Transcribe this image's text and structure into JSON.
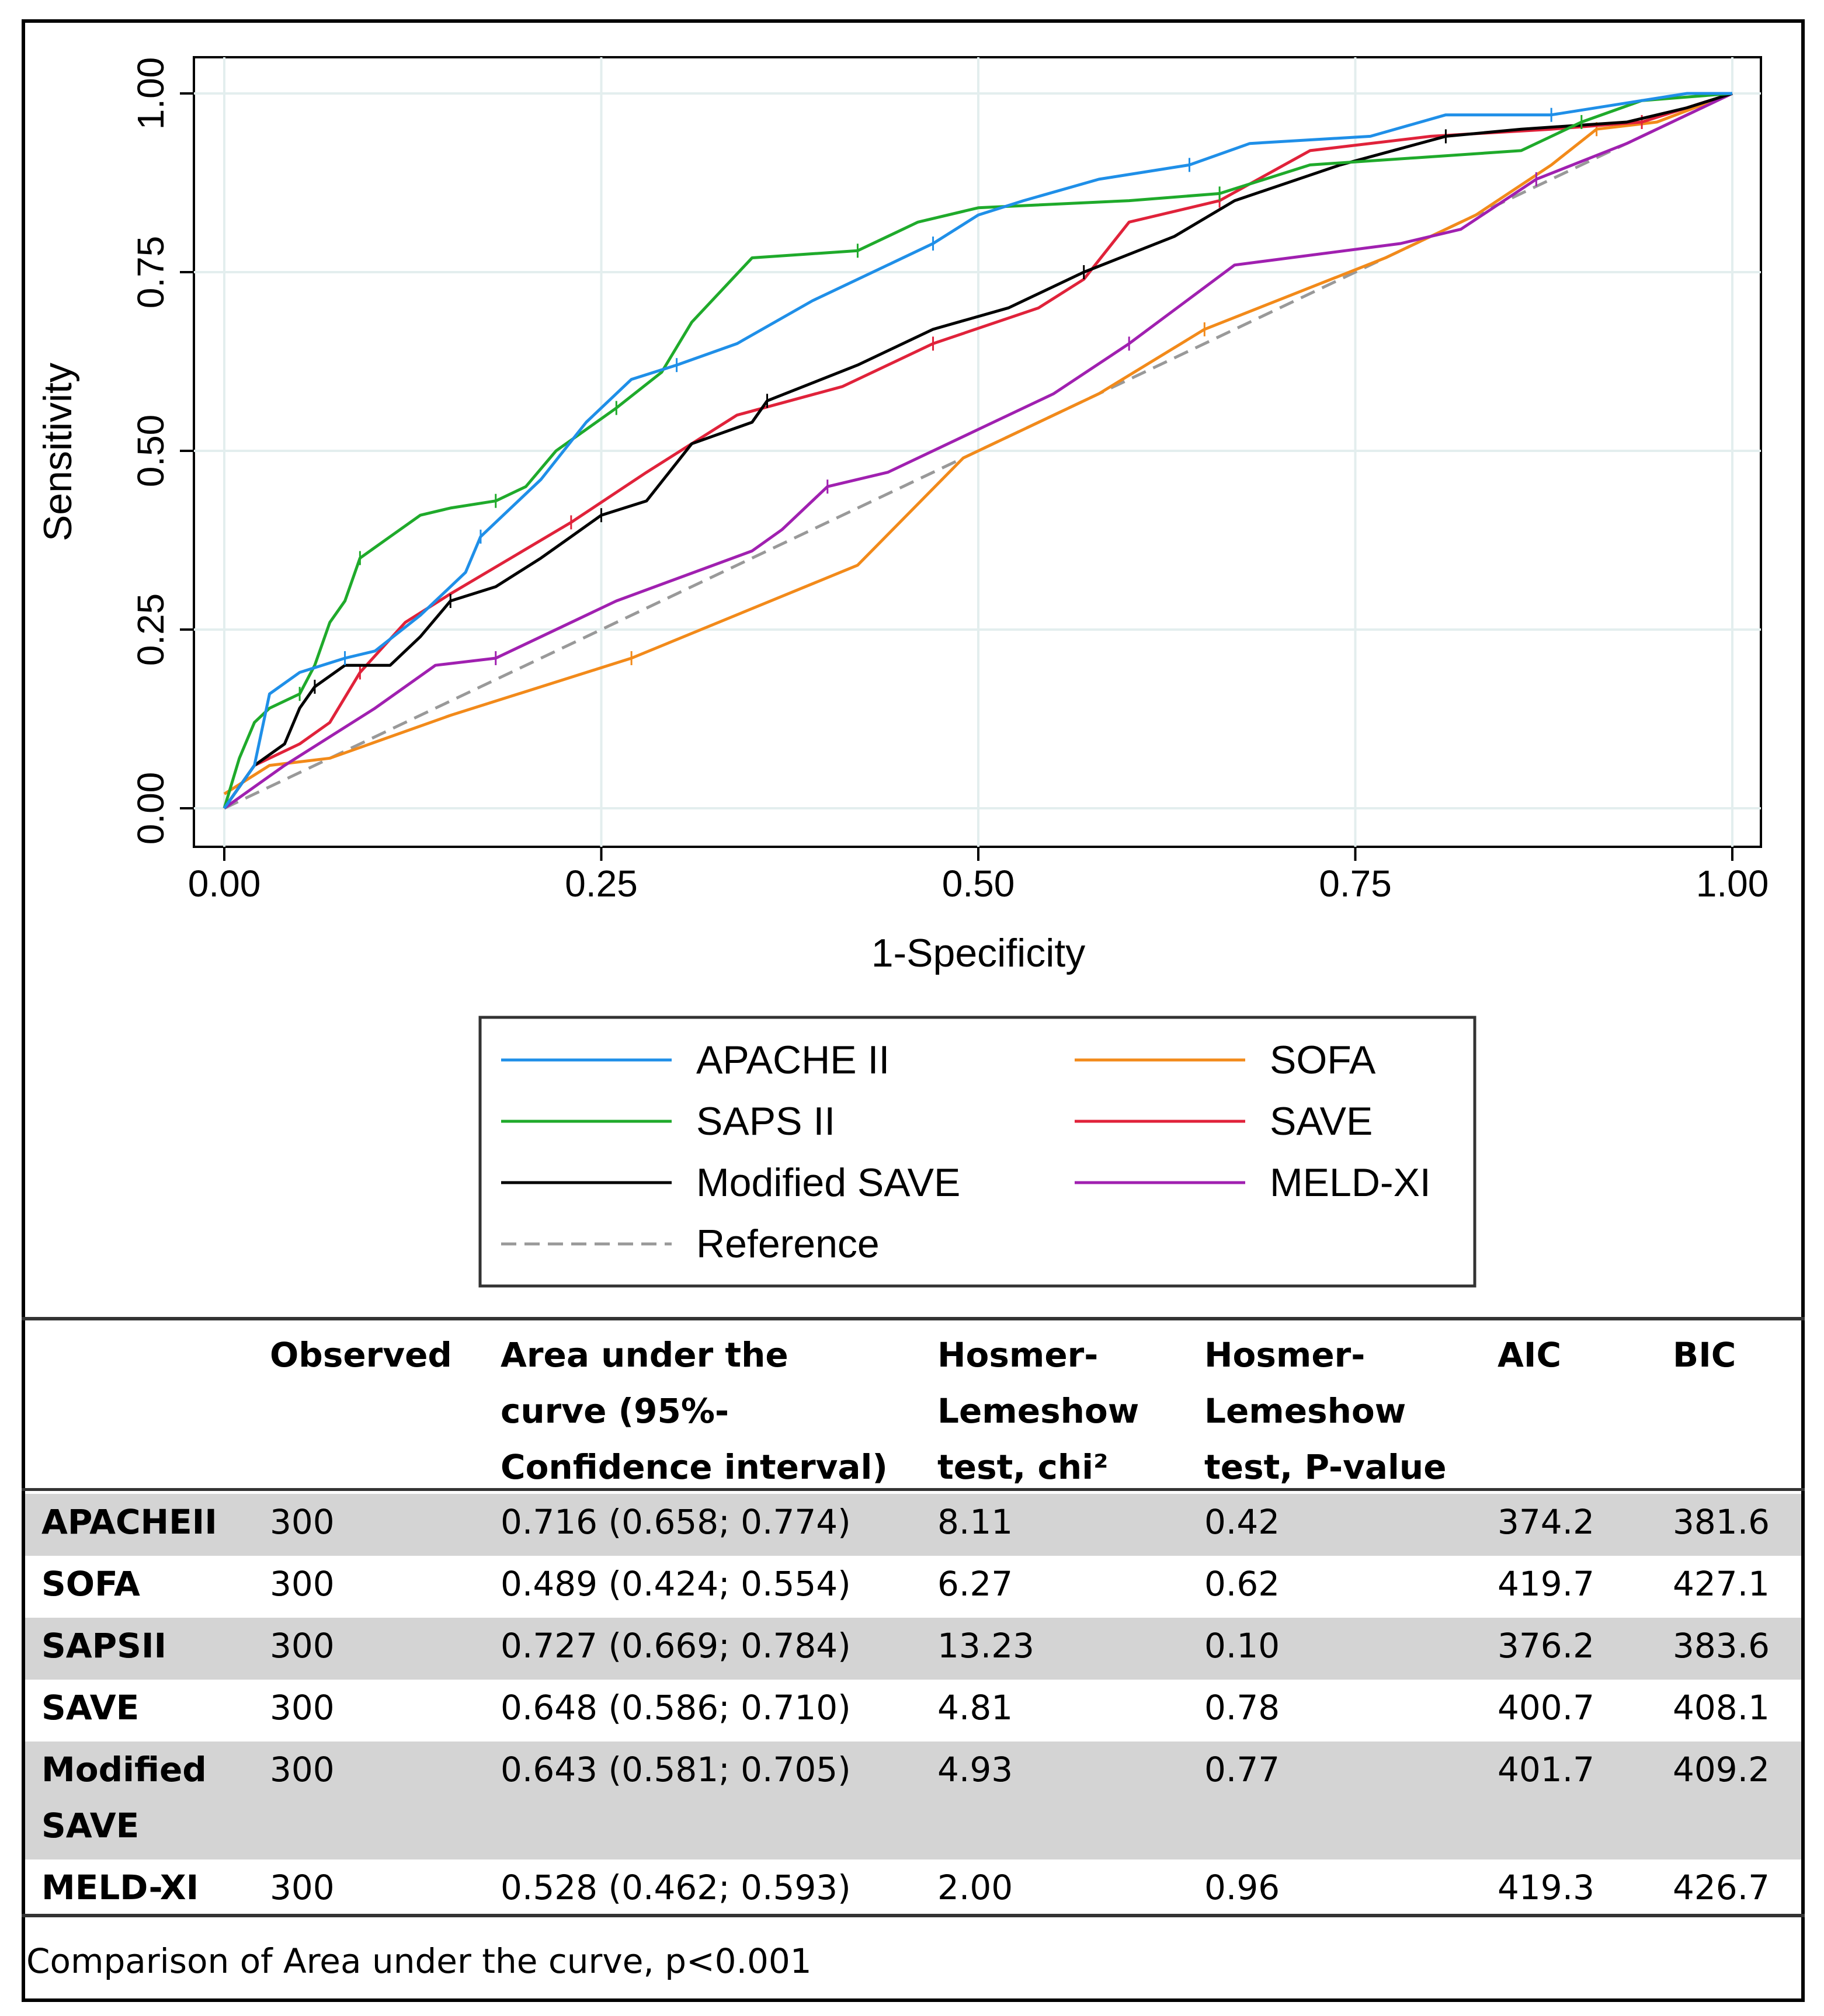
{
  "chart_data": {
    "type": "line",
    "title": "",
    "xlabel": "1-Specificity",
    "ylabel": "Sensitivity",
    "xlim": [
      0,
      1
    ],
    "ylim": [
      0,
      1
    ],
    "x_ticks": [
      "0.00",
      "0.25",
      "0.50",
      "0.75",
      "1.00"
    ],
    "y_ticks": [
      "0.00",
      "0.25",
      "0.50",
      "0.75",
      "1.00"
    ],
    "grid": true,
    "legend_position": "bottom",
    "series": [
      {
        "name": "APACHE II",
        "color": "#1f8fe8",
        "dash": false,
        "points": [
          [
            0,
            0
          ],
          [
            0.02,
            0.06
          ],
          [
            0.03,
            0.16
          ],
          [
            0.05,
            0.19
          ],
          [
            0.08,
            0.21
          ],
          [
            0.1,
            0.22
          ],
          [
            0.13,
            0.27
          ],
          [
            0.16,
            0.33
          ],
          [
            0.17,
            0.38
          ],
          [
            0.21,
            0.46
          ],
          [
            0.24,
            0.54
          ],
          [
            0.27,
            0.6
          ],
          [
            0.3,
            0.62
          ],
          [
            0.34,
            0.65
          ],
          [
            0.39,
            0.71
          ],
          [
            0.44,
            0.76
          ],
          [
            0.47,
            0.79
          ],
          [
            0.5,
            0.83
          ],
          [
            0.53,
            0.85
          ],
          [
            0.58,
            0.88
          ],
          [
            0.64,
            0.9
          ],
          [
            0.68,
            0.93
          ],
          [
            0.76,
            0.94
          ],
          [
            0.81,
            0.97
          ],
          [
            0.88,
            0.97
          ],
          [
            0.94,
            0.99
          ],
          [
            0.97,
            1
          ],
          [
            1,
            1
          ]
        ]
      },
      {
        "name": "SAPS II",
        "color": "#1faa2b",
        "dash": false,
        "points": [
          [
            0,
            0
          ],
          [
            0.01,
            0.07
          ],
          [
            0.02,
            0.12
          ],
          [
            0.03,
            0.14
          ],
          [
            0.05,
            0.16
          ],
          [
            0.06,
            0.2
          ],
          [
            0.07,
            0.26
          ],
          [
            0.08,
            0.29
          ],
          [
            0.09,
            0.35
          ],
          [
            0.11,
            0.38
          ],
          [
            0.13,
            0.41
          ],
          [
            0.15,
            0.42
          ],
          [
            0.18,
            0.43
          ],
          [
            0.2,
            0.45
          ],
          [
            0.22,
            0.5
          ],
          [
            0.24,
            0.53
          ],
          [
            0.26,
            0.56
          ],
          [
            0.29,
            0.61
          ],
          [
            0.31,
            0.68
          ],
          [
            0.35,
            0.77
          ],
          [
            0.42,
            0.78
          ],
          [
            0.46,
            0.82
          ],
          [
            0.5,
            0.84
          ],
          [
            0.6,
            0.85
          ],
          [
            0.66,
            0.86
          ],
          [
            0.72,
            0.9
          ],
          [
            0.79,
            0.91
          ],
          [
            0.86,
            0.92
          ],
          [
            0.9,
            0.96
          ],
          [
            0.94,
            0.99
          ],
          [
            1,
            1
          ]
        ]
      },
      {
        "name": "Modified SAVE",
        "color": "#000000",
        "dash": false,
        "points": [
          [
            0,
            0
          ],
          [
            0.02,
            0.06
          ],
          [
            0.04,
            0.09
          ],
          [
            0.05,
            0.14
          ],
          [
            0.06,
            0.17
          ],
          [
            0.08,
            0.2
          ],
          [
            0.11,
            0.2
          ],
          [
            0.13,
            0.24
          ],
          [
            0.15,
            0.29
          ],
          [
            0.18,
            0.31
          ],
          [
            0.21,
            0.35
          ],
          [
            0.23,
            0.38
          ],
          [
            0.25,
            0.41
          ],
          [
            0.28,
            0.43
          ],
          [
            0.31,
            0.51
          ],
          [
            0.35,
            0.54
          ],
          [
            0.36,
            0.57
          ],
          [
            0.42,
            0.62
          ],
          [
            0.47,
            0.67
          ],
          [
            0.52,
            0.7
          ],
          [
            0.57,
            0.75
          ],
          [
            0.63,
            0.8
          ],
          [
            0.67,
            0.85
          ],
          [
            0.74,
            0.9
          ],
          [
            0.81,
            0.94
          ],
          [
            0.86,
            0.95
          ],
          [
            0.93,
            0.96
          ],
          [
            0.97,
            0.98
          ],
          [
            1,
            1
          ]
        ]
      },
      {
        "name": "SOFA",
        "color": "#f28a1a",
        "dash": false,
        "points": [
          [
            0,
            0.02
          ],
          [
            0.03,
            0.06
          ],
          [
            0.07,
            0.07
          ],
          [
            0.15,
            0.13
          ],
          [
            0.27,
            0.21
          ],
          [
            0.42,
            0.34
          ],
          [
            0.49,
            0.49
          ],
          [
            0.58,
            0.58
          ],
          [
            0.65,
            0.67
          ],
          [
            0.77,
            0.77
          ],
          [
            0.83,
            0.83
          ],
          [
            0.88,
            0.9
          ],
          [
            0.91,
            0.95
          ],
          [
            0.95,
            0.96
          ],
          [
            1,
            1
          ]
        ]
      },
      {
        "name": "SAVE",
        "color": "#e0223a",
        "dash": false,
        "points": [
          [
            0,
            0
          ],
          [
            0.02,
            0.06
          ],
          [
            0.05,
            0.09
          ],
          [
            0.07,
            0.12
          ],
          [
            0.09,
            0.19
          ],
          [
            0.12,
            0.26
          ],
          [
            0.15,
            0.3
          ],
          [
            0.19,
            0.35
          ],
          [
            0.23,
            0.4
          ],
          [
            0.28,
            0.47
          ],
          [
            0.34,
            0.55
          ],
          [
            0.41,
            0.59
          ],
          [
            0.47,
            0.65
          ],
          [
            0.54,
            0.7
          ],
          [
            0.57,
            0.74
          ],
          [
            0.6,
            0.82
          ],
          [
            0.66,
            0.85
          ],
          [
            0.72,
            0.92
          ],
          [
            0.8,
            0.94
          ],
          [
            0.88,
            0.95
          ],
          [
            0.94,
            0.96
          ],
          [
            1,
            1
          ]
        ]
      },
      {
        "name": "MELD-XI",
        "color": "#a020b0",
        "dash": false,
        "points": [
          [
            0,
            0
          ],
          [
            0.04,
            0.06
          ],
          [
            0.1,
            0.14
          ],
          [
            0.14,
            0.2
          ],
          [
            0.18,
            0.21
          ],
          [
            0.26,
            0.29
          ],
          [
            0.35,
            0.36
          ],
          [
            0.37,
            0.39
          ],
          [
            0.4,
            0.45
          ],
          [
            0.44,
            0.47
          ],
          [
            0.5,
            0.53
          ],
          [
            0.55,
            0.58
          ],
          [
            0.6,
            0.65
          ],
          [
            0.67,
            0.76
          ],
          [
            0.78,
            0.79
          ],
          [
            0.82,
            0.81
          ],
          [
            0.87,
            0.88
          ],
          [
            0.93,
            0.93
          ],
          [
            0.98,
            0.98
          ],
          [
            1,
            1
          ]
        ]
      },
      {
        "name": "Reference",
        "color": "#999999",
        "dash": true,
        "points": [
          [
            0,
            0
          ],
          [
            1,
            1
          ]
        ]
      }
    ],
    "legend": {
      "left": [
        "APACHE II",
        "SAPS II",
        "Modified SAVE",
        "Reference"
      ],
      "right": [
        "SOFA",
        "SAVE",
        "MELD-XI"
      ]
    }
  },
  "table": {
    "headers": [
      [
        "",
        ""
      ],
      [
        "Observed"
      ],
      [
        "Area under the",
        "curve (95%-",
        "Confidence interval)"
      ],
      [
        "Hosmer-",
        "Lemeshow",
        "test, chi²"
      ],
      [
        "Hosmer-",
        "Lemeshow",
        "test, P-value"
      ],
      [
        "AIC"
      ],
      [
        "BIC"
      ]
    ],
    "rows": [
      {
        "name": [
          "APACHEII"
        ],
        "observed": "300",
        "auc": "0.716 (0.658; 0.774)",
        "chi2": "8.11",
        "p": "0.42",
        "aic": "374.2",
        "bic": "381.6",
        "shaded": true
      },
      {
        "name": [
          "SOFA"
        ],
        "observed": "300",
        "auc": "0.489 (0.424; 0.554)",
        "chi2": "6.27",
        "p": "0.62",
        "aic": "419.7",
        "bic": "427.1",
        "shaded": false
      },
      {
        "name": [
          "SAPSII"
        ],
        "observed": "300",
        "auc": "0.727 (0.669; 0.784)",
        "chi2": "13.23",
        "p": "0.10",
        "aic": "376.2",
        "bic": "383.6",
        "shaded": true
      },
      {
        "name": [
          "SAVE"
        ],
        "observed": "300",
        "auc": "0.648 (0.586; 0.710)",
        "chi2": "4.81",
        "p": "0.78",
        "aic": "400.7",
        "bic": "408.1",
        "shaded": false
      },
      {
        "name": [
          "Modified",
          "SAVE"
        ],
        "observed": "300",
        "auc": "0.643 (0.581; 0.705)",
        "chi2": "4.93",
        "p": "0.77",
        "aic": "401.7",
        "bic": "409.2",
        "shaded": true
      },
      {
        "name": [
          "MELD-XI"
        ],
        "observed": "300",
        "auc": "0.528 (0.462; 0.593)",
        "chi2": "2.00",
        "p": "0.96",
        "aic": "419.3",
        "bic": "426.7",
        "shaded": false
      }
    ],
    "footnote": "Comparison of Area under the curve, p<0.001"
  }
}
